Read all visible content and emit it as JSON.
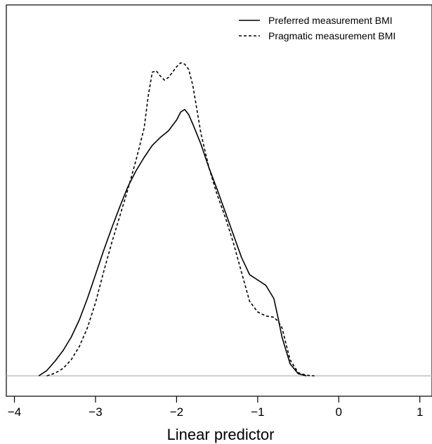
{
  "chart_data": {
    "type": "line",
    "xlabel": "Linear predictor",
    "ylabel": "",
    "xlim": [
      -4.1,
      1.15
    ],
    "ylim": [
      0,
      1.12
    ],
    "x_ticks": [
      "-4",
      "-3",
      "-2",
      "-1",
      "0",
      "1"
    ],
    "x_tick_values": [
      -4,
      -3,
      -2,
      -1,
      0,
      1
    ],
    "grid": false,
    "legend_position": "top-right",
    "baseline_color": "#b3b3b3",
    "series": [
      {
        "name": "Preferred measurement BMI",
        "dash": "solid",
        "color": "#000000",
        "points": [
          [
            -3.7,
            0.0
          ],
          [
            -3.6,
            0.02
          ],
          [
            -3.5,
            0.055
          ],
          [
            -3.4,
            0.095
          ],
          [
            -3.3,
            0.145
          ],
          [
            -3.2,
            0.21
          ],
          [
            -3.1,
            0.29
          ],
          [
            -3.0,
            0.38
          ],
          [
            -2.9,
            0.47
          ],
          [
            -2.8,
            0.555
          ],
          [
            -2.7,
            0.635
          ],
          [
            -2.6,
            0.71
          ],
          [
            -2.5,
            0.77
          ],
          [
            -2.4,
            0.82
          ],
          [
            -2.3,
            0.865
          ],
          [
            -2.2,
            0.895
          ],
          [
            -2.1,
            0.92
          ],
          [
            -2.0,
            0.96
          ],
          [
            -1.95,
            0.99
          ],
          [
            -1.9,
            1.0
          ],
          [
            -1.85,
            0.98
          ],
          [
            -1.8,
            0.945
          ],
          [
            -1.7,
            0.87
          ],
          [
            -1.6,
            0.78
          ],
          [
            -1.5,
            0.7
          ],
          [
            -1.4,
            0.615
          ],
          [
            -1.3,
            0.53
          ],
          [
            -1.2,
            0.445
          ],
          [
            -1.1,
            0.38
          ],
          [
            -1.0,
            0.36
          ],
          [
            -0.9,
            0.34
          ],
          [
            -0.8,
            0.29
          ],
          [
            -0.75,
            0.22
          ],
          [
            -0.7,
            0.145
          ],
          [
            -0.6,
            0.045
          ],
          [
            -0.5,
            0.008
          ],
          [
            -0.4,
            0.0
          ]
        ]
      },
      {
        "name": "Pragmatic measurement BMI",
        "dash": "dashed",
        "color": "#000000",
        "points": [
          [
            -3.6,
            0.0
          ],
          [
            -3.5,
            0.01
          ],
          [
            -3.4,
            0.028
          ],
          [
            -3.3,
            0.06
          ],
          [
            -3.2,
            0.11
          ],
          [
            -3.1,
            0.18
          ],
          [
            -3.0,
            0.275
          ],
          [
            -2.9,
            0.39
          ],
          [
            -2.8,
            0.5
          ],
          [
            -2.7,
            0.6
          ],
          [
            -2.6,
            0.7
          ],
          [
            -2.5,
            0.81
          ],
          [
            -2.4,
            0.93
          ],
          [
            -2.35,
            1.05
          ],
          [
            -2.3,
            1.14
          ],
          [
            -2.25,
            1.145
          ],
          [
            -2.2,
            1.125
          ],
          [
            -2.15,
            1.11
          ],
          [
            -2.1,
            1.12
          ],
          [
            -2.05,
            1.14
          ],
          [
            -2.0,
            1.16
          ],
          [
            -1.95,
            1.175
          ],
          [
            -1.9,
            1.17
          ],
          [
            -1.85,
            1.15
          ],
          [
            -1.8,
            1.09
          ],
          [
            -1.75,
            1.0
          ],
          [
            -1.7,
            0.91
          ],
          [
            -1.6,
            0.78
          ],
          [
            -1.5,
            0.68
          ],
          [
            -1.4,
            0.595
          ],
          [
            -1.3,
            0.5
          ],
          [
            -1.2,
            0.39
          ],
          [
            -1.1,
            0.28
          ],
          [
            -1.0,
            0.24
          ],
          [
            -0.9,
            0.225
          ],
          [
            -0.8,
            0.22
          ],
          [
            -0.75,
            0.205
          ],
          [
            -0.7,
            0.18
          ],
          [
            -0.65,
            0.12
          ],
          [
            -0.6,
            0.06
          ],
          [
            -0.5,
            0.012
          ],
          [
            -0.4,
            0.002
          ],
          [
            -0.3,
            0.0
          ]
        ]
      }
    ]
  }
}
